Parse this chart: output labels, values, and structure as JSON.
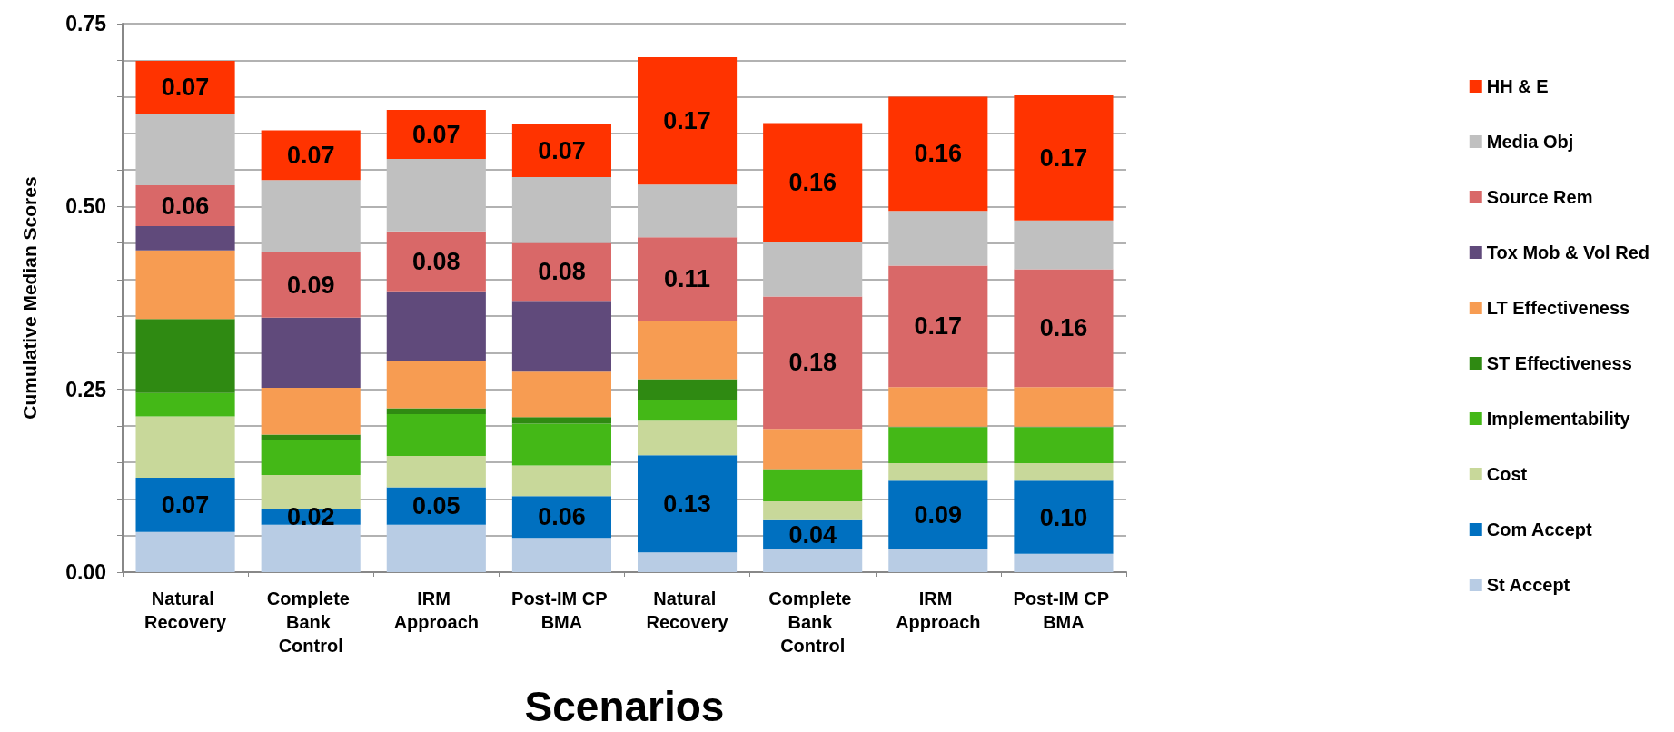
{
  "chart_data": {
    "type": "bar",
    "stacked": true,
    "xlabel": "Scenarios",
    "ylabel": "Cumulative Median Scores",
    "categories": [
      "Natural Recovery",
      "Complete Bank Control",
      "IRM Approach",
      "Post-IM CP BMA",
      "Natural Recovery",
      "Complete Bank Control",
      "IRM Approach",
      "Post-IM CP BMA"
    ],
    "ylim": [
      0,
      0.75
    ],
    "yticks": [
      {
        "value": 0,
        "label": "0.00"
      },
      {
        "value": 0.05,
        "label": null
      },
      {
        "value": 0.1,
        "label": null
      },
      {
        "value": 0.15,
        "label": null
      },
      {
        "value": 0.2,
        "label": null
      },
      {
        "value": 0.25,
        "label": "0.25"
      },
      {
        "value": 0.3,
        "label": null
      },
      {
        "value": 0.35,
        "label": null
      },
      {
        "value": 0.4,
        "label": null
      },
      {
        "value": 0.45,
        "label": null
      },
      {
        "value": 0.5,
        "label": "0.50"
      },
      {
        "value": 0.55,
        "label": null
      },
      {
        "value": 0.6,
        "label": null
      },
      {
        "value": 0.65,
        "label": null
      },
      {
        "value": 0.7,
        "label": null
      },
      {
        "value": 0.75,
        "label": "0.75"
      }
    ],
    "grid": "y",
    "legend": "right",
    "series": [
      {
        "name": "St Accept",
        "color": "#b8cce4",
        "values": [
          0.055,
          0.065,
          0.065,
          0.047,
          0.027,
          0.032,
          0.032,
          0.025
        ]
      },
      {
        "name": "Com Accept",
        "color": "#0070c0",
        "values": [
          0.074,
          0.022,
          0.051,
          0.057,
          0.133,
          0.039,
          0.093,
          0.1
        ],
        "value_labels": [
          "0.07",
          "0.02",
          "0.05",
          "0.06",
          "0.13",
          "0.04",
          "0.09",
          "0.10"
        ]
      },
      {
        "name": "Cost",
        "color": "#c8d89a",
        "values": [
          0.084,
          0.046,
          0.043,
          0.042,
          0.047,
          0.026,
          0.024,
          0.024
        ]
      },
      {
        "name": "Implementability",
        "color": "#44b817",
        "values": [
          0.032,
          0.047,
          0.057,
          0.057,
          0.029,
          0.042,
          0.049,
          0.049
        ]
      },
      {
        "name": "ST Effectiveness",
        "color": "#2f8a12",
        "values": [
          0.101,
          0.008,
          0.008,
          0.009,
          0.028,
          0.002,
          0.001,
          0.001
        ]
      },
      {
        "name": "LT Effectiveness",
        "color": "#f79c52",
        "values": [
          0.094,
          0.064,
          0.064,
          0.062,
          0.079,
          0.055,
          0.054,
          0.054
        ]
      },
      {
        "name": "Tox Mob & Vol Red",
        "color": "#604a7b",
        "values": [
          0.033,
          0.096,
          0.096,
          0.097,
          0,
          0,
          0,
          0
        ]
      },
      {
        "name": "Source Rem",
        "color": "#d96868",
        "values": [
          0.056,
          0.089,
          0.082,
          0.079,
          0.115,
          0.181,
          0.166,
          0.161
        ],
        "value_labels": [
          "0.06",
          "0.09",
          "0.08",
          "0.08",
          "0.11",
          "0.18",
          "0.17",
          "0.16"
        ]
      },
      {
        "name": "Media Obj",
        "color": "#c0c0c0",
        "values": [
          0.098,
          0.099,
          0.099,
          0.09,
          0.072,
          0.074,
          0.075,
          0.067
        ]
      },
      {
        "name": "HH & E",
        "color": "#ff3300",
        "values": [
          0.072,
          0.068,
          0.067,
          0.073,
          0.174,
          0.163,
          0.156,
          0.171
        ],
        "value_labels": [
          "0.07",
          "0.07",
          "0.07",
          "0.07",
          "0.17",
          "0.16",
          "0.16",
          "0.17"
        ]
      }
    ]
  }
}
